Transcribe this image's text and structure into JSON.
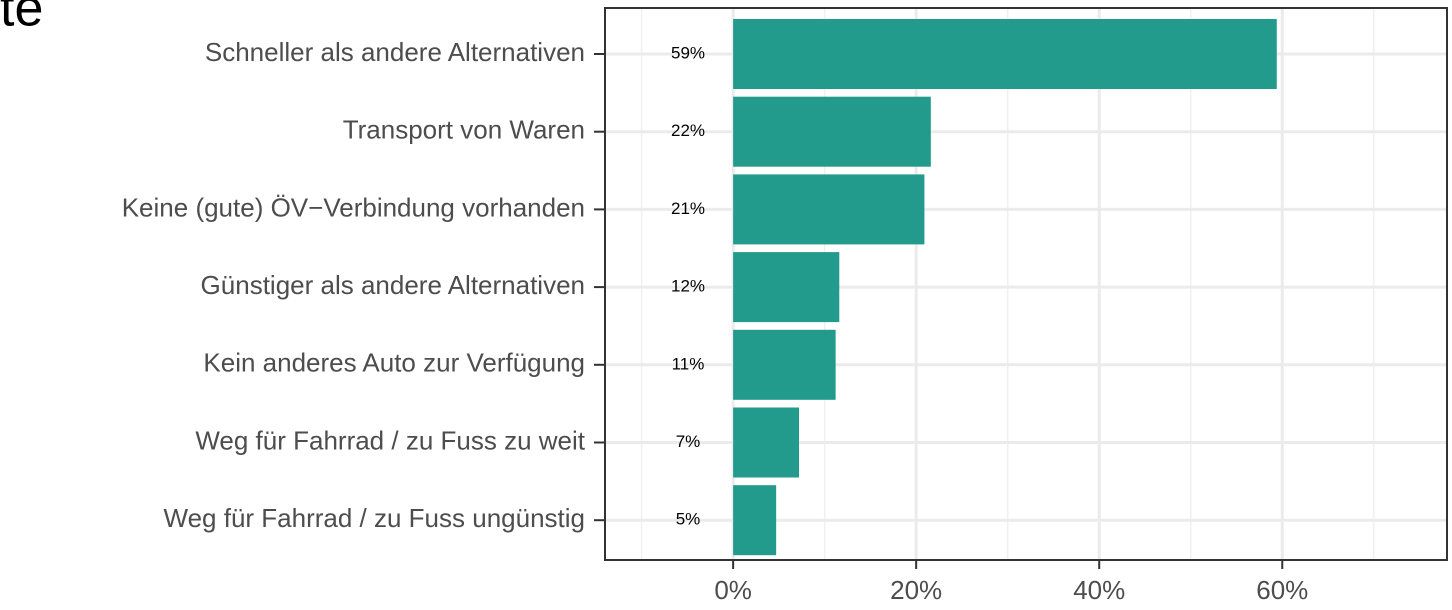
{
  "chart_data": {
    "type": "bar",
    "orientation": "horizontal",
    "title": "te",
    "categories": [
      "Schneller als andere Alternativen",
      "Transport von Waren",
      "Keine (gute) ÖV−Verbindung vorhanden",
      "Günstiger als andere Alternativen",
      "Kein anderes Auto zur Verfügung",
      "Weg für Fahrrad / zu Fuss zu weit",
      "Weg für Fahrrad / zu Fuss ungünstig"
    ],
    "values": [
      59.4,
      21.6,
      20.9,
      11.6,
      11.2,
      7.2,
      4.7
    ],
    "value_labels": [
      "59%",
      "22%",
      "21%",
      "12%",
      "11%",
      "7%",
      "5%"
    ],
    "color": "#229a8c",
    "xlim": [
      -14,
      78
    ],
    "xticks": [
      {
        "value": 0,
        "label": "0%"
      },
      {
        "value": 20,
        "label": "20%"
      },
      {
        "value": 40,
        "label": "40%"
      },
      {
        "value": 60,
        "label": "60%"
      }
    ],
    "minor_xticks": [
      -10,
      10,
      30,
      50,
      70
    ],
    "grid": true
  }
}
